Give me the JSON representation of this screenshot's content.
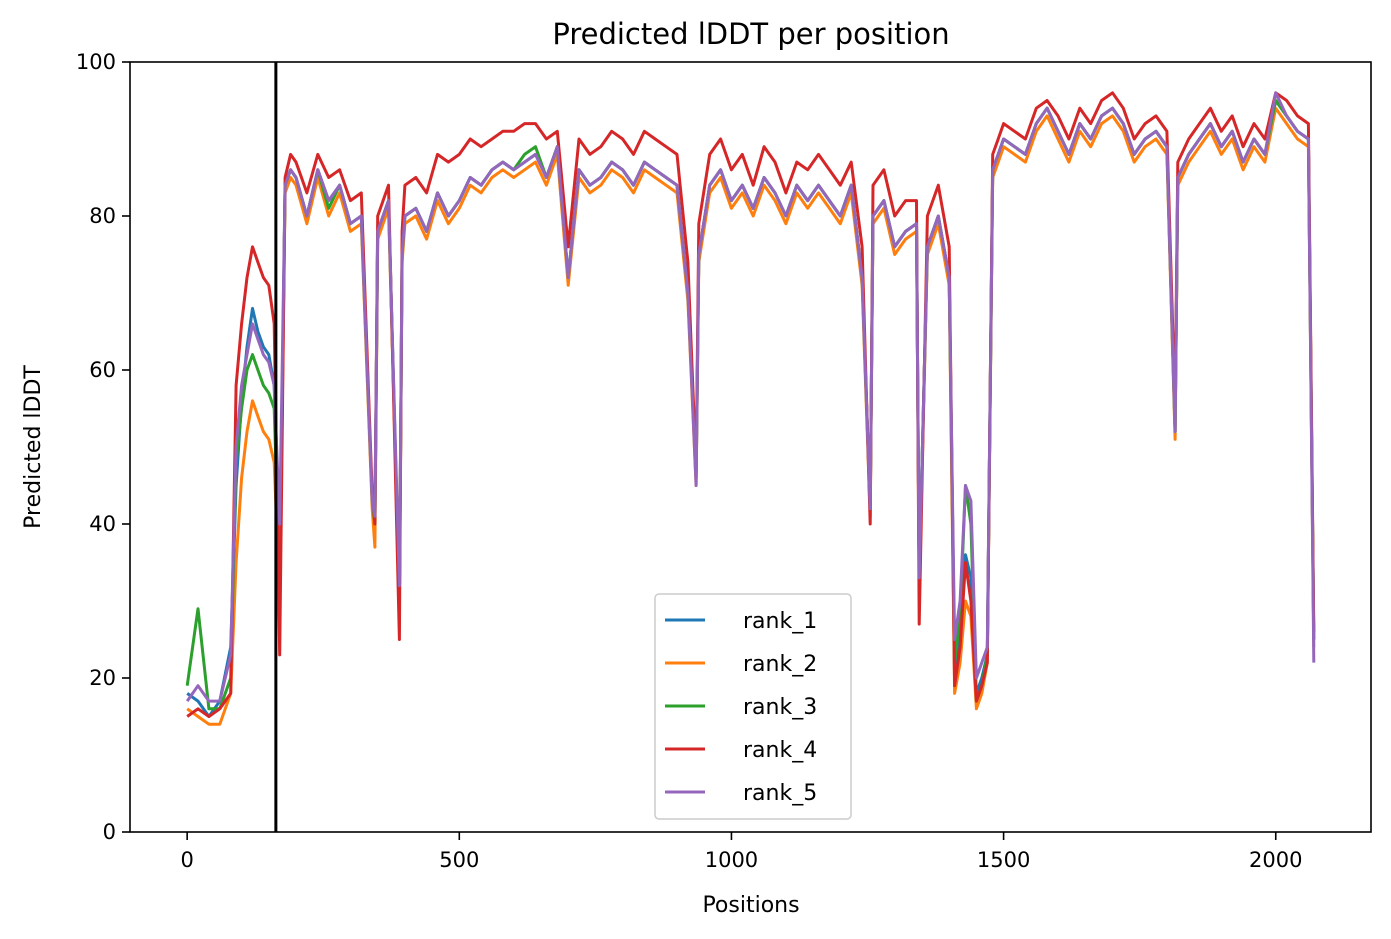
{
  "chart_data": {
    "type": "line",
    "title": "Predicted lDDT per position",
    "xlabel": "Positions",
    "ylabel": "Predicted lDDT",
    "xlim": [
      -105,
      2175
    ],
    "ylim": [
      0,
      100
    ],
    "xticks": [
      0,
      500,
      1000,
      1500,
      2000
    ],
    "yticks": [
      0,
      20,
      40,
      60,
      80,
      100
    ],
    "vertical_marker_x": 163,
    "legend_position": "lower-center",
    "grid": false,
    "x_points": [
      0,
      20,
      40,
      60,
      80,
      90,
      100,
      110,
      120,
      130,
      140,
      150,
      160,
      170,
      180,
      190,
      200,
      220,
      240,
      260,
      280,
      300,
      320,
      340,
      345,
      350,
      370,
      390,
      395,
      400,
      420,
      440,
      460,
      480,
      500,
      520,
      540,
      560,
      580,
      600,
      620,
      640,
      660,
      680,
      700,
      720,
      740,
      760,
      780,
      800,
      820,
      840,
      860,
      880,
      900,
      920,
      935,
      940,
      960,
      980,
      1000,
      1020,
      1040,
      1060,
      1080,
      1100,
      1120,
      1140,
      1160,
      1180,
      1200,
      1220,
      1240,
      1255,
      1260,
      1280,
      1300,
      1320,
      1340,
      1345,
      1360,
      1380,
      1400,
      1410,
      1420,
      1430,
      1440,
      1450,
      1460,
      1470,
      1480,
      1490,
      1500,
      1520,
      1540,
      1560,
      1580,
      1600,
      1620,
      1640,
      1660,
      1680,
      1700,
      1720,
      1740,
      1760,
      1780,
      1800,
      1815,
      1820,
      1840,
      1860,
      1880,
      1900,
      1920,
      1940,
      1960,
      1980,
      2000,
      2020,
      2040,
      2060,
      2070
    ],
    "series": [
      {
        "name": "rank_1",
        "color": "#1f77b4",
        "values": [
          18,
          17,
          15,
          17,
          24,
          45,
          56,
          63,
          68,
          65,
          63,
          62,
          58,
          33,
          84,
          86,
          85,
          80,
          86,
          82,
          84,
          79,
          80,
          43,
          40,
          78,
          82,
          30,
          75,
          80,
          81,
          78,
          83,
          80,
          82,
          85,
          84,
          86,
          87,
          86,
          87,
          88,
          85,
          89,
          72,
          86,
          84,
          85,
          87,
          86,
          84,
          87,
          86,
          85,
          84,
          70,
          46,
          75,
          84,
          86,
          82,
          84,
          81,
          85,
          83,
          80,
          84,
          82,
          84,
          82,
          80,
          84,
          72,
          42,
          80,
          82,
          76,
          78,
          79,
          33,
          76,
          80,
          72,
          20,
          25,
          36,
          33,
          18,
          20,
          23,
          86,
          88,
          90,
          89,
          88,
          92,
          94,
          91,
          88,
          92,
          90,
          93,
          94,
          92,
          88,
          90,
          91,
          89,
          52,
          85,
          88,
          90,
          92,
          89,
          91,
          87,
          90,
          88,
          95,
          93,
          91,
          90,
          25
        ]
      },
      {
        "name": "rank_2",
        "color": "#ff7f0e",
        "values": [
          16,
          15,
          14,
          14,
          18,
          35,
          46,
          52,
          56,
          54,
          52,
          51,
          48,
          30,
          83,
          85,
          84,
          79,
          85,
          80,
          83,
          78,
          79,
          42,
          37,
          77,
          81,
          30,
          74,
          79,
          80,
          77,
          82,
          79,
          81,
          84,
          83,
          85,
          86,
          85,
          86,
          87,
          84,
          88,
          71,
          85,
          83,
          84,
          86,
          85,
          83,
          86,
          85,
          84,
          83,
          69,
          45,
          74,
          83,
          85,
          81,
          83,
          80,
          84,
          82,
          79,
          83,
          81,
          83,
          81,
          79,
          83,
          71,
          41,
          79,
          81,
          75,
          77,
          78,
          32,
          75,
          79,
          71,
          18,
          22,
          30,
          28,
          16,
          18,
          22,
          85,
          87,
          89,
          88,
          87,
          91,
          93,
          90,
          87,
          91,
          89,
          92,
          93,
          91,
          87,
          89,
          90,
          88,
          51,
          84,
          87,
          89,
          91,
          88,
          90,
          86,
          89,
          87,
          94,
          92,
          90,
          89,
          24
        ]
      },
      {
        "name": "rank_3",
        "color": "#2ca02c",
        "values": [
          19,
          29,
          16,
          16,
          20,
          48,
          55,
          60,
          62,
          60,
          58,
          57,
          55,
          32,
          84,
          86,
          85,
          80,
          86,
          81,
          84,
          79,
          80,
          43,
          40,
          78,
          82,
          30,
          75,
          80,
          81,
          78,
          83,
          80,
          82,
          85,
          84,
          86,
          87,
          86,
          88,
          89,
          85,
          89,
          72,
          86,
          84,
          85,
          87,
          86,
          84,
          87,
          86,
          85,
          84,
          70,
          46,
          75,
          84,
          86,
          82,
          84,
          81,
          85,
          83,
          80,
          84,
          82,
          84,
          82,
          80,
          84,
          72,
          42,
          80,
          82,
          76,
          78,
          79,
          33,
          76,
          80,
          72,
          22,
          28,
          45,
          40,
          17,
          19,
          23,
          86,
          88,
          90,
          89,
          88,
          92,
          94,
          91,
          88,
          92,
          90,
          93,
          94,
          92,
          88,
          90,
          91,
          89,
          52,
          85,
          88,
          90,
          92,
          89,
          91,
          87,
          90,
          88,
          95,
          93,
          91,
          90,
          25
        ]
      },
      {
        "name": "rank_4",
        "color": "#d62728",
        "values": [
          15,
          16,
          15,
          16,
          18,
          58,
          66,
          72,
          76,
          74,
          72,
          71,
          66,
          23,
          85,
          88,
          87,
          83,
          88,
          85,
          86,
          82,
          83,
          44,
          40,
          80,
          84,
          25,
          78,
          84,
          85,
          83,
          88,
          87,
          88,
          90,
          89,
          90,
          91,
          91,
          92,
          92,
          90,
          91,
          76,
          90,
          88,
          89,
          91,
          90,
          88,
          91,
          90,
          89,
          88,
          74,
          47,
          79,
          88,
          90,
          86,
          88,
          84,
          89,
          87,
          83,
          87,
          86,
          88,
          86,
          84,
          87,
          76,
          40,
          84,
          86,
          80,
          82,
          82,
          27,
          80,
          84,
          76,
          19,
          24,
          35,
          30,
          17,
          19,
          22,
          88,
          90,
          92,
          91,
          90,
          94,
          95,
          93,
          90,
          94,
          92,
          95,
          96,
          94,
          90,
          92,
          93,
          91,
          55,
          87,
          90,
          92,
          94,
          91,
          93,
          89,
          92,
          90,
          96,
          95,
          93,
          92,
          26
        ]
      },
      {
        "name": "rank_5",
        "color": "#9467bd",
        "values": [
          17,
          19,
          17,
          17,
          23,
          50,
          58,
          62,
          66,
          64,
          62,
          61,
          58,
          40,
          84,
          86,
          85,
          80,
          86,
          82,
          84,
          79,
          80,
          43,
          41,
          78,
          82,
          32,
          75,
          80,
          81,
          78,
          83,
          80,
          82,
          85,
          84,
          86,
          87,
          86,
          87,
          88,
          85,
          89,
          72,
          86,
          84,
          85,
          87,
          86,
          84,
          87,
          86,
          85,
          84,
          70,
          45,
          75,
          84,
          86,
          82,
          84,
          81,
          85,
          83,
          80,
          84,
          82,
          84,
          82,
          80,
          84,
          72,
          42,
          80,
          82,
          76,
          78,
          79,
          33,
          76,
          80,
          72,
          25,
          30,
          45,
          43,
          20,
          22,
          24,
          86,
          88,
          90,
          89,
          88,
          92,
          94,
          91,
          88,
          92,
          90,
          93,
          94,
          92,
          88,
          90,
          91,
          89,
          52,
          85,
          88,
          90,
          92,
          89,
          91,
          87,
          90,
          88,
          96,
          93,
          91,
          90,
          22
        ]
      }
    ]
  }
}
